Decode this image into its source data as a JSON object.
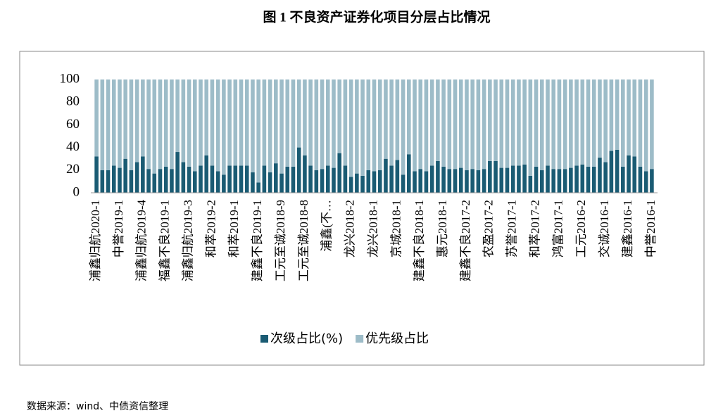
{
  "chart_data": {
    "type": "stacked_bar",
    "title": "图 1 不良资产证券化项目分层占比情况",
    "source": "数据来源：wind、中债资信整理",
    "categories": [
      "浦鑫归航2020-1",
      null,
      null,
      null,
      "中誉2019-1",
      null,
      null,
      null,
      "浦鑫归航2019-4",
      null,
      null,
      null,
      "福鑫不良2019-1",
      null,
      null,
      null,
      "浦鑫归航2019-3",
      null,
      null,
      null,
      "和萃2019-2",
      null,
      null,
      null,
      "和萃2019-1",
      null,
      null,
      null,
      "建鑫不良2019-1",
      null,
      null,
      null,
      "工元至诚2018-9",
      null,
      null,
      null,
      "工元至诚2018-8",
      null,
      null,
      null,
      "浦鑫(不…",
      null,
      null,
      null,
      "龙兴2018-2",
      null,
      null,
      null,
      "龙兴2018-1",
      null,
      null,
      null,
      "京城2018-1",
      null,
      null,
      null,
      "建鑫不良2018-1",
      null,
      null,
      null,
      "惠元2018-1",
      null,
      null,
      null,
      "建鑫不良2017-2",
      null,
      null,
      null,
      "农盈2017-2",
      null,
      null,
      null,
      "苏誉2017-1",
      null,
      null,
      null,
      "和萃2017-2",
      null,
      null,
      null,
      "鸿富2017-1",
      null,
      null,
      null,
      "工元2016-2",
      null,
      null,
      null,
      "交诚2016-1",
      null,
      null,
      null,
      "建鑫2016-1",
      null,
      null,
      null,
      "中誉2016-1"
    ],
    "series": [
      {
        "name": "次级占比(%)",
        "color": "#1a5b73",
        "values": [
          32,
          20,
          20,
          24,
          22,
          30,
          20,
          27,
          32,
          21,
          17,
          21,
          23,
          21,
          36,
          27,
          23,
          19,
          24,
          33,
          24,
          19,
          16,
          24,
          24,
          24,
          24,
          18,
          9,
          24,
          18,
          26,
          17,
          23,
          23,
          40,
          33,
          24,
          20,
          21,
          24,
          22,
          35,
          24,
          14,
          17,
          15,
          20,
          19,
          20,
          30,
          24,
          29,
          16,
          34,
          19,
          21,
          19,
          24,
          28,
          23,
          21,
          21,
          22,
          20,
          21,
          20,
          21,
          28,
          28,
          22,
          22,
          24,
          24,
          25,
          15,
          23,
          20,
          24,
          21,
          21,
          21,
          22,
          24,
          25,
          23,
          23,
          31,
          27,
          37,
          38,
          23,
          33,
          32,
          23,
          19,
          21
        ]
      },
      {
        "name": "优先级占比",
        "color": "#9dbcc8",
        "values": [
          68,
          80,
          80,
          76,
          78,
          70,
          80,
          73,
          68,
          79,
          83,
          79,
          77,
          79,
          64,
          73,
          77,
          81,
          76,
          67,
          76,
          81,
          84,
          76,
          76,
          76,
          76,
          82,
          91,
          76,
          82,
          74,
          83,
          77,
          77,
          60,
          67,
          76,
          80,
          79,
          76,
          78,
          65,
          76,
          86,
          83,
          85,
          80,
          81,
          80,
          70,
          76,
          71,
          84,
          66,
          81,
          79,
          81,
          76,
          72,
          77,
          79,
          79,
          78,
          80,
          79,
          80,
          79,
          72,
          72,
          78,
          78,
          76,
          76,
          75,
          85,
          77,
          80,
          76,
          79,
          79,
          79,
          78,
          76,
          75,
          77,
          77,
          69,
          73,
          63,
          62,
          77,
          67,
          68,
          77,
          81,
          79
        ]
      }
    ],
    "ylim": [
      0,
      100
    ],
    "yticks": [
      0,
      20,
      40,
      60,
      80,
      100
    ],
    "grid": false,
    "legend": "bottom"
  }
}
